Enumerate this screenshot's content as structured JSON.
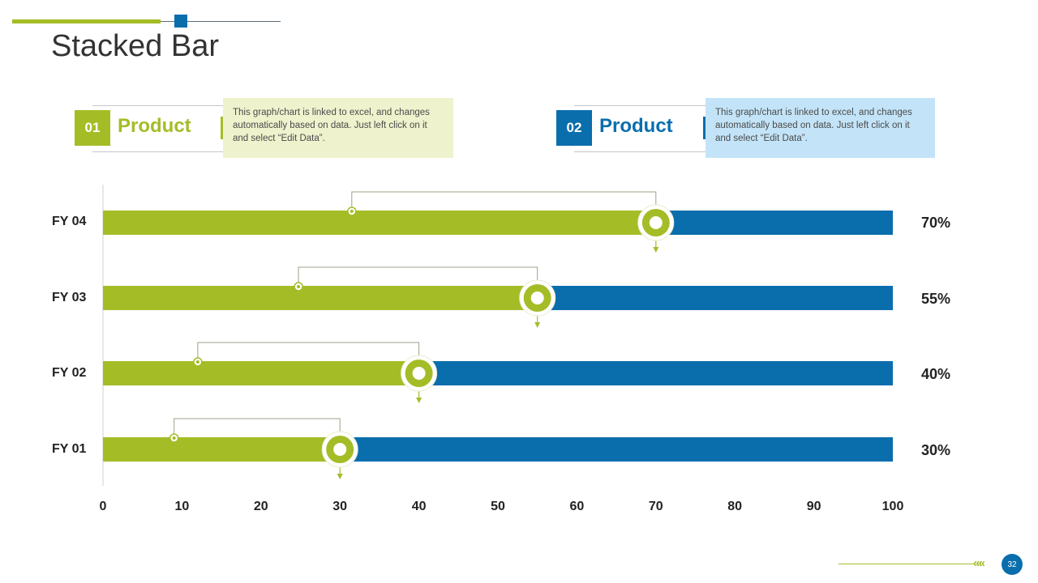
{
  "slide": {
    "title": "Stacked Bar",
    "page_number": "32",
    "chevrons": "«««"
  },
  "legend": [
    {
      "number": "01",
      "label": "Product",
      "color": "#a4bd27",
      "note": "This graph/chart is linked to excel, and changes automatically based on data. Just left click on it and select “Edit Data”.",
      "note_bg": "#eef3cd"
    },
    {
      "number": "02",
      "label": "Product",
      "color": "#0a6ead",
      "note": "This graph/chart is linked to excel, and changes automatically based on data. Just left click on it and select “Edit Data”.",
      "note_bg": "#c3e4f8"
    }
  ],
  "chart_data": {
    "type": "bar",
    "orientation": "horizontal",
    "stacked": true,
    "title": "Stacked Bar",
    "categories": [
      "FY 01",
      "FY 02",
      "FY 03",
      "FY 04"
    ],
    "series": [
      {
        "name": "Product 01",
        "color": "#a4bd27",
        "values": [
          30,
          40,
          55,
          70
        ]
      },
      {
        "name": "Product 02",
        "color": "#0a6ead",
        "values": [
          70,
          60,
          45,
          30
        ]
      }
    ],
    "data_labels": [
      "30%",
      "40%",
      "55%",
      "70%"
    ],
    "xlim": [
      0,
      100
    ],
    "xticks": [
      0,
      10,
      20,
      30,
      40,
      50,
      60,
      70,
      80,
      90,
      100
    ]
  }
}
